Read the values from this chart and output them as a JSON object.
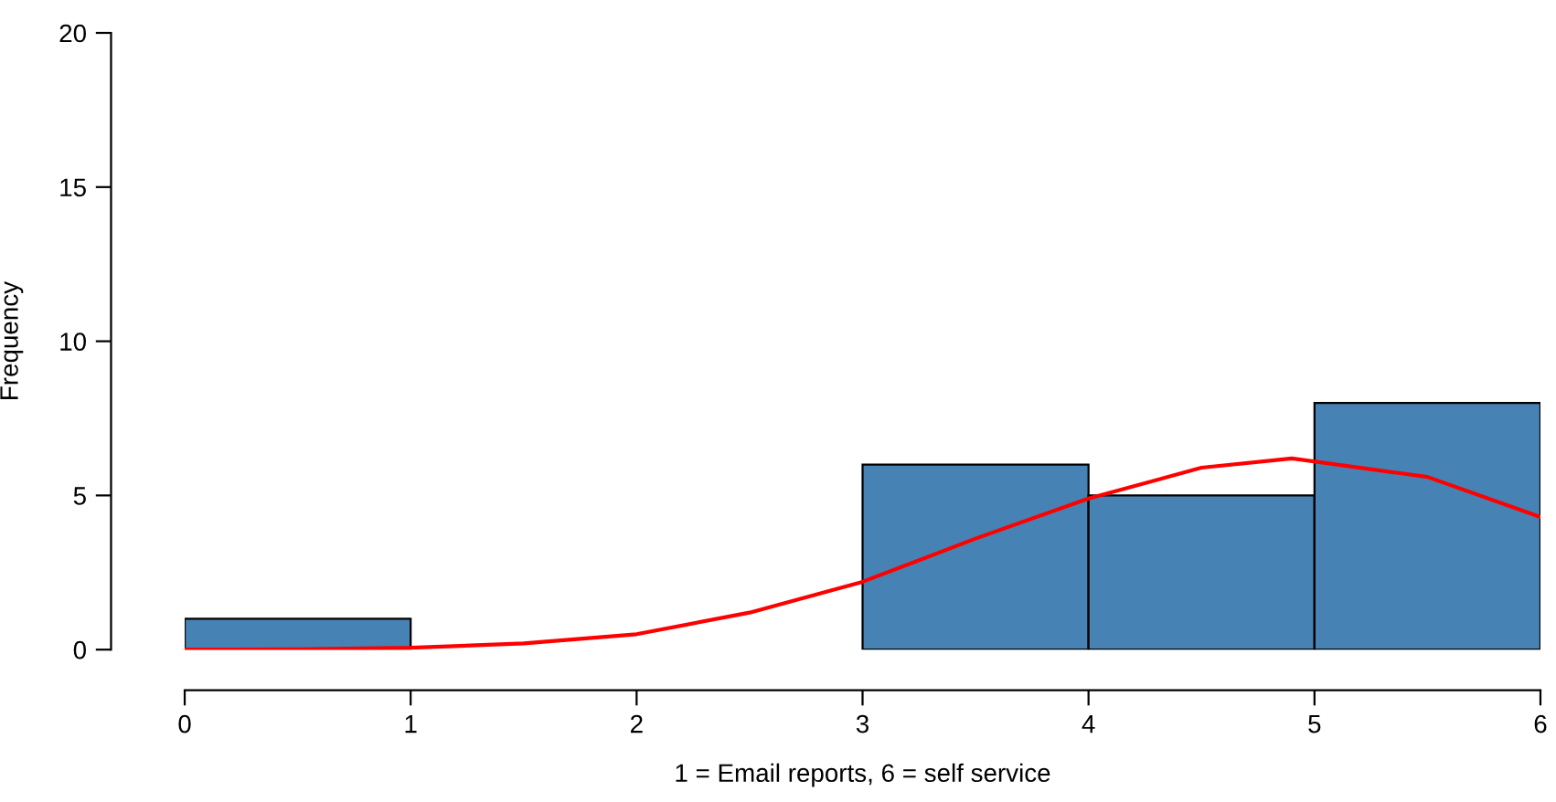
{
  "chart_data": {
    "type": "histogram",
    "xlabel": "1 = Email reports, 6 = self service",
    "ylabel": "Frequency",
    "bins": [
      0,
      1,
      2,
      3,
      4,
      5,
      6
    ],
    "values": [
      1,
      0,
      0,
      6,
      5,
      8
    ],
    "color": "#4682b4",
    "series": [
      {
        "type": "line",
        "color": "#ff0000",
        "x": [
          0,
          0.5,
          1,
          1.5,
          2,
          2.5,
          3,
          3.5,
          4,
          4.5,
          4.9,
          5.5,
          6
        ],
        "values": [
          0.0,
          0.01,
          0.06,
          0.2,
          0.5,
          1.2,
          2.2,
          3.6,
          4.9,
          5.9,
          6.2,
          5.6,
          4.3
        ]
      }
    ],
    "xlim": [
      0,
      6
    ],
    "ylim": [
      0,
      20
    ],
    "xticks": [
      0,
      1,
      2,
      3,
      4,
      5,
      6
    ],
    "yticks": [
      0,
      5,
      10,
      15,
      20
    ],
    "grid": false,
    "legend": false
  }
}
